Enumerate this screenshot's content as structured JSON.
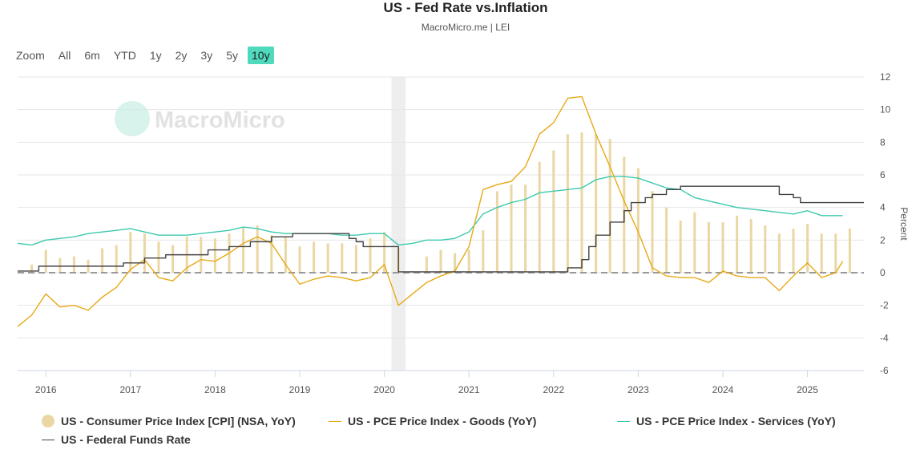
{
  "title": "US - Fed Rate vs.Inflation",
  "subtitle": "MacroMicro.me | LEI",
  "watermark": "MacroMicro",
  "range_selector": {
    "zoom_label": "Zoom",
    "buttons": [
      "All",
      "6m",
      "YTD",
      "1y",
      "2y",
      "3y",
      "5y",
      "10y"
    ],
    "selected": "10y"
  },
  "chart_data": {
    "type": "line",
    "x_start": "2015-09",
    "x_end": "2025-09",
    "xtick_labels": [
      "2016",
      "2017",
      "2018",
      "2019",
      "2020",
      "2021",
      "2022",
      "2023",
      "2024",
      "2025"
    ],
    "yticks": [
      12,
      10,
      8,
      6,
      4,
      2,
      0,
      -2,
      -4,
      -6
    ],
    "ylim": [
      -6,
      12
    ],
    "ylabel": "Percent",
    "recession_band": [
      "2020-02",
      "2020-04"
    ],
    "grid": true,
    "legend_position": "bottom",
    "colors": {
      "cpi": "#ead7a4",
      "goods": "#e8a917",
      "services": "#3cc9ae",
      "fed": "#444444",
      "recession": "#eeeeee"
    },
    "series": [
      {
        "name": "US - Consumer Price Index [CPI] (NSA, YoY)",
        "type": "bar",
        "x": [
          "2015-11",
          "2016-01",
          "2016-03",
          "2016-05",
          "2016-07",
          "2016-09",
          "2016-11",
          "2017-01",
          "2017-03",
          "2017-05",
          "2017-07",
          "2017-09",
          "2017-11",
          "2018-01",
          "2018-03",
          "2018-05",
          "2018-07",
          "2018-09",
          "2018-11",
          "2019-01",
          "2019-03",
          "2019-05",
          "2019-07",
          "2019-09",
          "2019-11",
          "2020-01",
          "2020-03",
          "2020-05",
          "2020-07",
          "2020-09",
          "2020-11",
          "2021-01",
          "2021-03",
          "2021-05",
          "2021-07",
          "2021-09",
          "2021-11",
          "2022-01",
          "2022-03",
          "2022-05",
          "2022-07",
          "2022-09",
          "2022-11",
          "2023-01",
          "2023-03",
          "2023-05",
          "2023-07",
          "2023-09",
          "2023-11",
          "2024-01",
          "2024-03",
          "2024-05",
          "2024-07",
          "2024-09",
          "2024-11",
          "2025-01",
          "2025-03",
          "2025-05",
          "2025-07"
        ],
        "values": [
          0.5,
          1.4,
          0.9,
          1.0,
          0.8,
          1.5,
          1.7,
          2.5,
          2.4,
          1.9,
          1.7,
          2.2,
          2.2,
          2.1,
          2.4,
          2.8,
          2.9,
          2.3,
          2.2,
          1.6,
          1.9,
          1.8,
          1.8,
          1.7,
          2.1,
          2.5,
          1.5,
          0.1,
          1.0,
          1.4,
          1.2,
          1.4,
          2.6,
          5.0,
          5.4,
          5.4,
          6.8,
          7.5,
          8.5,
          8.6,
          8.5,
          8.2,
          7.1,
          6.4,
          5.0,
          4.0,
          3.2,
          3.7,
          3.1,
          3.1,
          3.5,
          3.3,
          2.9,
          2.4,
          2.7,
          3.0,
          2.4,
          2.4,
          2.7
        ]
      },
      {
        "name": "US - PCE Price Index - Goods (YoY)",
        "type": "line",
        "x": [
          "2015-09",
          "2015-11",
          "2016-01",
          "2016-03",
          "2016-05",
          "2016-07",
          "2016-09",
          "2016-11",
          "2017-01",
          "2017-03",
          "2017-05",
          "2017-07",
          "2017-09",
          "2017-11",
          "2018-01",
          "2018-03",
          "2018-05",
          "2018-07",
          "2018-09",
          "2018-11",
          "2019-01",
          "2019-03",
          "2019-05",
          "2019-07",
          "2019-09",
          "2019-11",
          "2020-01",
          "2020-03",
          "2020-05",
          "2020-07",
          "2020-09",
          "2020-11",
          "2021-01",
          "2021-03",
          "2021-05",
          "2021-07",
          "2021-09",
          "2021-11",
          "2022-01",
          "2022-03",
          "2022-05",
          "2022-07",
          "2022-09",
          "2022-11",
          "2023-01",
          "2023-03",
          "2023-05",
          "2023-07",
          "2023-09",
          "2023-11",
          "2024-01",
          "2024-03",
          "2024-05",
          "2024-07",
          "2024-09",
          "2024-11",
          "2025-01",
          "2025-03",
          "2025-05",
          "2025-06"
        ],
        "values": [
          -3.3,
          -2.6,
          -1.3,
          -2.1,
          -2.0,
          -2.3,
          -1.5,
          -0.9,
          0.2,
          0.8,
          -0.3,
          -0.5,
          0.3,
          0.8,
          0.7,
          1.2,
          1.8,
          2.2,
          1.8,
          0.5,
          -0.7,
          -0.4,
          -0.2,
          -0.3,
          -0.5,
          -0.3,
          0.5,
          -2.0,
          -1.3,
          -0.6,
          -0.2,
          0.1,
          1.6,
          5.1,
          5.4,
          5.6,
          6.5,
          8.5,
          9.2,
          10.7,
          10.8,
          8.5,
          6.5,
          4.4,
          2.5,
          0.3,
          -0.2,
          -0.3,
          -0.3,
          -0.6,
          0.1,
          -0.2,
          -0.3,
          -0.3,
          -1.1,
          -0.2,
          0.6,
          -0.3,
          0.0,
          0.7
        ]
      },
      {
        "name": "US - PCE Price Index - Services (YoY)",
        "type": "line",
        "x": [
          "2015-09",
          "2015-11",
          "2016-01",
          "2016-03",
          "2016-05",
          "2016-07",
          "2016-09",
          "2016-11",
          "2017-01",
          "2017-03",
          "2017-05",
          "2017-07",
          "2017-09",
          "2017-11",
          "2018-01",
          "2018-03",
          "2018-05",
          "2018-07",
          "2018-09",
          "2018-11",
          "2019-01",
          "2019-03",
          "2019-05",
          "2019-07",
          "2019-09",
          "2019-11",
          "2020-01",
          "2020-03",
          "2020-05",
          "2020-07",
          "2020-09",
          "2020-11",
          "2021-01",
          "2021-03",
          "2021-05",
          "2021-07",
          "2021-09",
          "2021-11",
          "2022-01",
          "2022-03",
          "2022-05",
          "2022-07",
          "2022-09",
          "2022-11",
          "2023-01",
          "2023-03",
          "2023-05",
          "2023-07",
          "2023-09",
          "2023-11",
          "2024-01",
          "2024-03",
          "2024-05",
          "2024-07",
          "2024-09",
          "2024-11",
          "2025-01",
          "2025-03",
          "2025-05",
          "2025-06"
        ],
        "values": [
          1.8,
          1.7,
          2.0,
          2.1,
          2.2,
          2.4,
          2.5,
          2.6,
          2.7,
          2.5,
          2.3,
          2.3,
          2.3,
          2.4,
          2.5,
          2.6,
          2.8,
          2.7,
          2.5,
          2.4,
          2.4,
          2.4,
          2.4,
          2.3,
          2.3,
          2.4,
          2.4,
          1.7,
          1.8,
          2.0,
          2.0,
          2.1,
          2.5,
          3.6,
          4.0,
          4.3,
          4.5,
          4.9,
          5.0,
          5.1,
          5.2,
          5.7,
          5.9,
          5.9,
          5.8,
          5.5,
          5.2,
          5.1,
          4.6,
          4.4,
          4.2,
          4.0,
          3.9,
          3.8,
          3.7,
          3.6,
          3.8,
          3.5,
          3.5,
          3.5
        ]
      },
      {
        "name": "US - Federal Funds Rate",
        "type": "step",
        "x": [
          "2015-09",
          "2015-12",
          "2016-12",
          "2017-03",
          "2017-06",
          "2017-12",
          "2018-03",
          "2018-06",
          "2018-09",
          "2018-12",
          "2019-08",
          "2019-09",
          "2019-10",
          "2020-03",
          "2022-03",
          "2022-05",
          "2022-06",
          "2022-07",
          "2022-09",
          "2022-11",
          "2022-12",
          "2023-02",
          "2023-03",
          "2023-05",
          "2023-07",
          "2024-09",
          "2024-11",
          "2024-12",
          "2025-09"
        ],
        "values": [
          0.1,
          0.4,
          0.6,
          0.9,
          1.1,
          1.4,
          1.6,
          1.9,
          2.2,
          2.4,
          2.1,
          1.9,
          1.6,
          0.05,
          0.3,
          0.8,
          1.6,
          2.3,
          3.1,
          3.8,
          4.3,
          4.6,
          4.8,
          5.1,
          5.3,
          4.8,
          4.6,
          4.3,
          4.3
        ]
      }
    ]
  }
}
